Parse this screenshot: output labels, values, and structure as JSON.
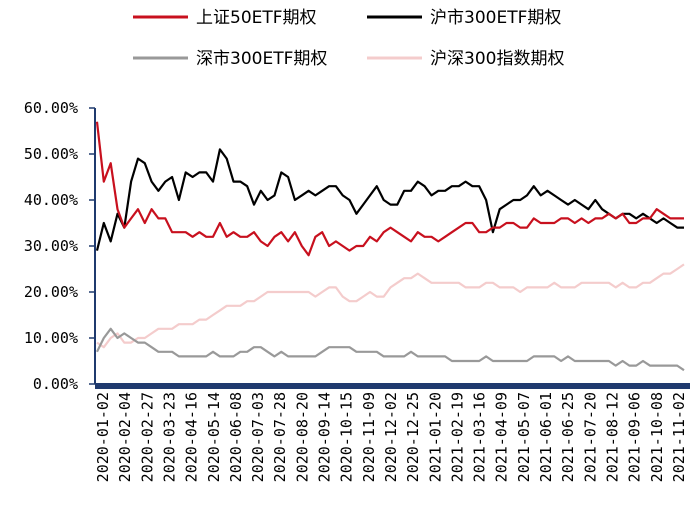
{
  "chart_data": {
    "type": "line",
    "title": "",
    "xlabel": "",
    "ylabel": "",
    "ylim": [
      0,
      60
    ],
    "y_ticks": [
      "0.00%",
      "10.00%",
      "20.00%",
      "30.00%",
      "40.00%",
      "50.00%",
      "60.00%"
    ],
    "x_ticks": [
      "2020-01-02",
      "2020-02-04",
      "2020-02-27",
      "2020-03-23",
      "2020-04-16",
      "2020-05-14",
      "2020-06-08",
      "2020-07-03",
      "2020-07-28",
      "2020-08-20",
      "2020-09-14",
      "2020-10-15",
      "2020-11-09",
      "2020-12-02",
      "2020-12-25",
      "2021-01-20",
      "2021-02-19",
      "2021-03-16",
      "2021-04-09",
      "2021-05-07",
      "2021-06-01",
      "2021-06-25",
      "2021-07-20",
      "2021-08-12",
      "2021-09-06",
      "2021-10-08",
      "2021-11-02"
    ],
    "grid": false,
    "legend_position": "top",
    "series": [
      {
        "name": "上证50ETF期权",
        "color": "#c8101e",
        "values": [
          57,
          44,
          48,
          38,
          34,
          36,
          38,
          35,
          38,
          36,
          36,
          33,
          33,
          33,
          32,
          33,
          32,
          32,
          35,
          32,
          33,
          32,
          32,
          33,
          31,
          30,
          32,
          33,
          31,
          33,
          30,
          28,
          32,
          33,
          30,
          31,
          30,
          29,
          30,
          30,
          32,
          31,
          33,
          34,
          33,
          32,
          31,
          33,
          32,
          32,
          31,
          32,
          33,
          34,
          35,
          35,
          33,
          33,
          34,
          34,
          35,
          35,
          34,
          34,
          36,
          35,
          35,
          35,
          36,
          36,
          35,
          36,
          35,
          36,
          36,
          37,
          36,
          37,
          35,
          35,
          36,
          36,
          38,
          37,
          36,
          36,
          36
        ]
      },
      {
        "name": "沪市300ETF期权",
        "color": "#000000",
        "values": [
          29,
          35,
          31,
          37,
          34,
          44,
          49,
          48,
          44,
          42,
          44,
          45,
          40,
          46,
          45,
          46,
          46,
          44,
          51,
          49,
          44,
          44,
          43,
          39,
          42,
          40,
          41,
          46,
          45,
          40,
          41,
          42,
          41,
          42,
          43,
          43,
          41,
          40,
          37,
          39,
          41,
          43,
          40,
          39,
          39,
          42,
          42,
          44,
          43,
          41,
          42,
          42,
          43,
          43,
          44,
          43,
          43,
          40,
          33,
          38,
          39,
          40,
          40,
          41,
          43,
          41,
          42,
          41,
          40,
          39,
          40,
          39,
          38,
          40,
          38,
          37,
          36,
          37,
          37,
          36,
          37,
          36,
          35,
          36,
          35,
          34,
          34
        ]
      },
      {
        "name": "深市300ETF期权",
        "color": "#999999",
        "values": [
          7,
          10,
          12,
          10,
          11,
          10,
          9,
          9,
          8,
          7,
          7,
          7,
          6,
          6,
          6,
          6,
          6,
          7,
          6,
          6,
          6,
          7,
          7,
          8,
          8,
          7,
          6,
          7,
          6,
          6,
          6,
          6,
          6,
          7,
          8,
          8,
          8,
          8,
          7,
          7,
          7,
          7,
          6,
          6,
          6,
          6,
          7,
          6,
          6,
          6,
          6,
          6,
          5,
          5,
          5,
          5,
          5,
          6,
          5,
          5,
          5,
          5,
          5,
          5,
          6,
          6,
          6,
          6,
          5,
          6,
          5,
          5,
          5,
          5,
          5,
          5,
          4,
          5,
          4,
          4,
          5,
          4,
          4,
          4,
          4,
          4,
          3
        ]
      },
      {
        "name": "沪深300指数期权",
        "color": "#f4cccc",
        "values": [
          9,
          8,
          10,
          11,
          9,
          9,
          10,
          10,
          11,
          12,
          12,
          12,
          13,
          13,
          13,
          14,
          14,
          15,
          16,
          17,
          17,
          17,
          18,
          18,
          19,
          20,
          20,
          20,
          20,
          20,
          20,
          20,
          19,
          20,
          21,
          21,
          19,
          18,
          18,
          19,
          20,
          19,
          19,
          21,
          22,
          23,
          23,
          24,
          23,
          22,
          22,
          22,
          22,
          22,
          21,
          21,
          21,
          22,
          22,
          21,
          21,
          21,
          20,
          21,
          21,
          21,
          21,
          22,
          21,
          21,
          21,
          22,
          22,
          22,
          22,
          22,
          21,
          22,
          21,
          21,
          22,
          22,
          23,
          24,
          24,
          25,
          26
        ]
      }
    ]
  }
}
